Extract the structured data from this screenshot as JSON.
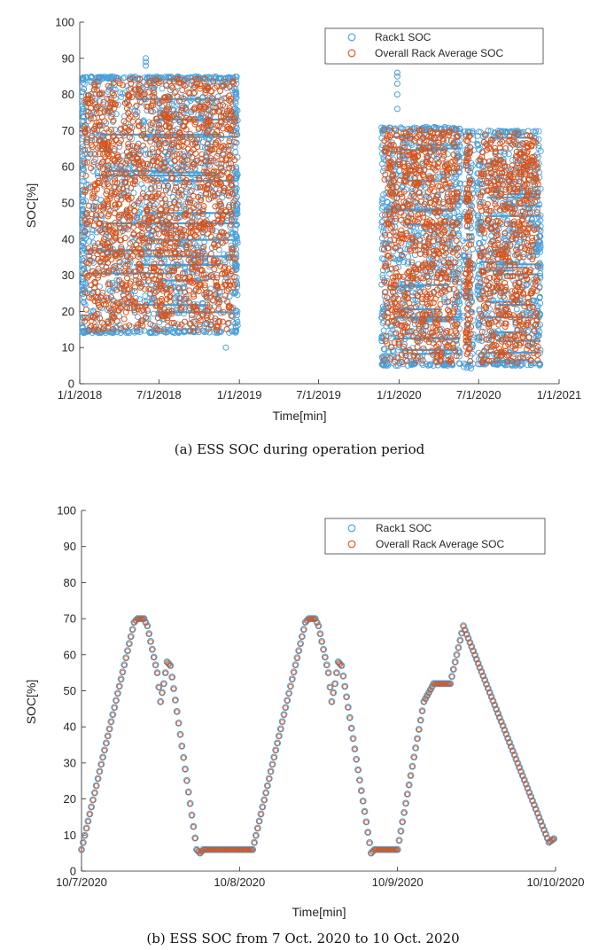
{
  "colors": {
    "rack1": "#4a9fd8",
    "average": "#d95319",
    "axis": "#262626",
    "background": "#ffffff"
  },
  "chart_data": [
    {
      "id": "a",
      "type": "scatter",
      "caption": "(a) ESS SOC during operation period",
      "xlabel": "Time[min]",
      "ylabel": "SOC[%]",
      "x_is_date": true,
      "xlim": [
        "2018-01-01",
        "2021-01-01"
      ],
      "xticks": [
        "2018-01-01",
        "2018-07-01",
        "2019-01-01",
        "2019-07-01",
        "2020-01-01",
        "2020-07-01",
        "2021-01-01"
      ],
      "xtick_labels": [
        "1/1/2018",
        "7/1/2018",
        "1/1/2019",
        "7/1/2019",
        "1/1/2020",
        "7/1/2020",
        "1/1/2021"
      ],
      "ylim": [
        0,
        100
      ],
      "yticks": [
        0,
        10,
        20,
        30,
        40,
        50,
        60,
        70,
        80,
        90,
        100
      ],
      "grid": false,
      "legend_position": "top-right",
      "legend": [
        "Rack1 SOC",
        "Overall Rack Average SOC"
      ],
      "dense_regions": [
        {
          "x_start": "2018-01-06",
          "x_end": "2018-12-28",
          "y_min": 14,
          "y_max": 85
        },
        {
          "x_start": "2019-11-22",
          "x_end": "2020-05-20",
          "y_min": 5,
          "y_max": 71
        },
        {
          "x_start": "2020-05-26",
          "x_end": "2020-06-20",
          "y_min": 4,
          "y_max": 70
        },
        {
          "x_start": "2020-06-28",
          "x_end": "2020-11-20",
          "y_min": 5,
          "y_max": 70
        }
      ],
      "outliers": [
        {
          "x": "2018-06-01",
          "y": 90
        },
        {
          "x": "2018-06-01",
          "y": 89
        },
        {
          "x": "2018-06-01",
          "y": 88
        },
        {
          "x": "2018-12-01",
          "y": 10
        },
        {
          "x": "2019-12-28",
          "y": 86
        },
        {
          "x": "2019-12-28",
          "y": 85
        },
        {
          "x": "2019-12-28",
          "y": 83
        },
        {
          "x": "2019-12-28",
          "y": 80
        },
        {
          "x": "2019-12-28",
          "y": 76
        }
      ]
    },
    {
      "id": "b",
      "type": "scatter",
      "caption": "(b) ESS SOC from 7 Oct. 2020 to 10 Oct. 2020",
      "xlabel": "Time[min]",
      "ylabel": "SOC[%]",
      "x_is_date": true,
      "xlim": [
        "2020-10-07",
        "2020-10-10"
      ],
      "xticks": [
        "2020-10-07",
        "2020-10-08",
        "2020-10-09",
        "2020-10-10"
      ],
      "xtick_labels": [
        "10/7/2020",
        "10/8/2020",
        "10/9/2020",
        "10/10/2020"
      ],
      "ylim": [
        0,
        100
      ],
      "yticks": [
        0,
        10,
        20,
        30,
        40,
        50,
        60,
        70,
        80,
        90,
        100
      ],
      "grid": false,
      "legend_position": "top-right",
      "legend": [
        "Rack1 SOC",
        "Overall Rack Average SOC"
      ],
      "series": [
        {
          "name": "Rack1 SOC"
        },
        {
          "name": "Overall Rack Average SOC"
        }
      ],
      "profile": [
        [
          "2020-10-07 00:00",
          6
        ],
        [
          "2020-10-07 08:00",
          69
        ],
        [
          "2020-10-07 08:30",
          70
        ],
        [
          "2020-10-07 09:30",
          70
        ],
        [
          "2020-10-07 10:00",
          68
        ],
        [
          "2020-10-07 11:30",
          55
        ],
        [
          "2020-10-07 12:00",
          47
        ],
        [
          "2020-10-07 12:30",
          52
        ],
        [
          "2020-10-07 13:00",
          58
        ],
        [
          "2020-10-07 13:30",
          57
        ],
        [
          "2020-10-07 17:30",
          6
        ],
        [
          "2020-10-07 18:00",
          5
        ],
        [
          "2020-10-07 18:30",
          6
        ],
        [
          "2020-10-08 02:00",
          6
        ],
        [
          "2020-10-08 10:00",
          69
        ],
        [
          "2020-10-08 10:30",
          70
        ],
        [
          "2020-10-08 11:30",
          70
        ],
        [
          "2020-10-08 12:00",
          68
        ],
        [
          "2020-10-08 13:30",
          55
        ],
        [
          "2020-10-08 14:00",
          47
        ],
        [
          "2020-10-08 14:30",
          52
        ],
        [
          "2020-10-08 15:00",
          58
        ],
        [
          "2020-10-08 15:30",
          57
        ],
        [
          "2020-10-08 20:00",
          5
        ],
        [
          "2020-10-08 20:30",
          6
        ],
        [
          "2020-10-09 00:00",
          6
        ],
        [
          "2020-10-09 04:00",
          47
        ],
        [
          "2020-10-09 05:30",
          52
        ],
        [
          "2020-10-09 08:00",
          52
        ],
        [
          "2020-10-09 10:00",
          68
        ],
        [
          "2020-10-09 23:00",
          8
        ],
        [
          "2020-10-09 23:45",
          9
        ]
      ]
    }
  ]
}
